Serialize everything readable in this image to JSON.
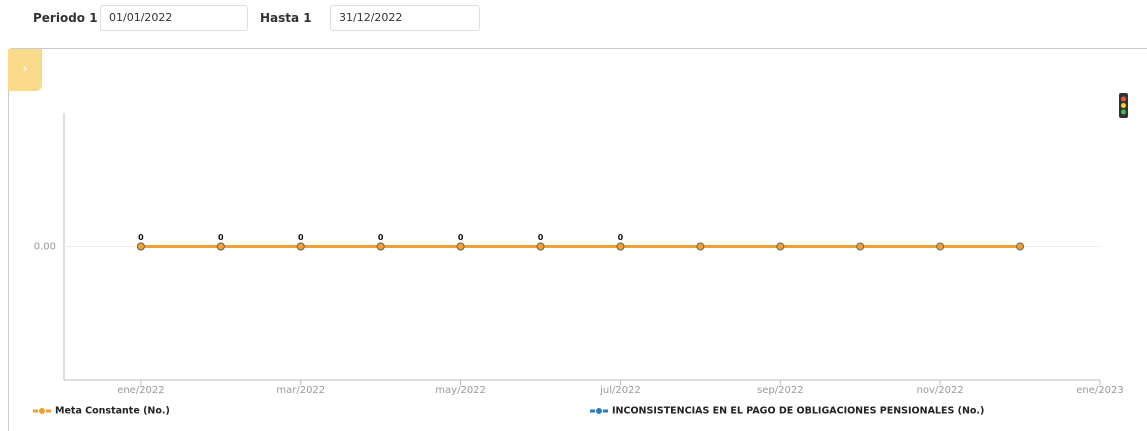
{
  "filters": {
    "period_label": "Periodo 1",
    "start": "01/01/2022",
    "until_label": "Hasta 1",
    "end": "31/12/2022"
  },
  "chart_data": {
    "type": "line",
    "x": [
      "2022-01",
      "2022-02",
      "2022-03",
      "2022-04",
      "2022-05",
      "2022-06",
      "2022-07",
      "2022-08",
      "2022-09",
      "2022-10",
      "2022-11",
      "2022-12"
    ],
    "xlim": [
      "2021-12",
      "2023-01"
    ],
    "xticks": [
      {
        "value": "2022-01",
        "label": "ene/2022"
      },
      {
        "value": "2022-03",
        "label": "mar/2022"
      },
      {
        "value": "2022-05",
        "label": "may/2022"
      },
      {
        "value": "2022-07",
        "label": "jul/2022"
      },
      {
        "value": "2022-09",
        "label": "sep/2022"
      },
      {
        "value": "2022-11",
        "label": "nov/2022"
      },
      {
        "value": "2023-01",
        "label": "ene/2023"
      }
    ],
    "ylim": [
      -1,
      1
    ],
    "yticks": [
      {
        "value": 0,
        "label": "0.00"
      }
    ],
    "grid": true,
    "series": [
      {
        "name": "INCONSISTENCIAS EN EL PAGO DE OBLIGACIONES PENSIONALES (No.)",
        "color": "#2b7bbf",
        "values": [
          0,
          0,
          0,
          0,
          0,
          0,
          0,
          null,
          null,
          null,
          null,
          null
        ],
        "data_labels": true
      },
      {
        "name": "Meta Constante (No.)",
        "color": "#f0a030",
        "values": [
          0,
          0,
          0,
          0,
          0,
          0,
          0,
          0,
          0,
          0,
          0,
          0
        ],
        "data_labels": false
      }
    ]
  }
}
